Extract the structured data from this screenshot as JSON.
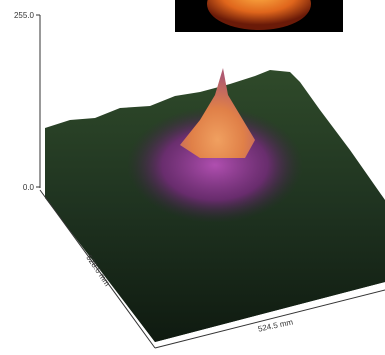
{
  "chart_data": {
    "type": "surface3d",
    "zlim": [
      0,
      255
    ],
    "zticks": [
      {
        "value": 0,
        "label": "0.0"
      },
      {
        "value": 255,
        "label": "255.0"
      }
    ],
    "xlabel": "524.5 mm",
    "ylabel": "528.6 mm"
  }
}
